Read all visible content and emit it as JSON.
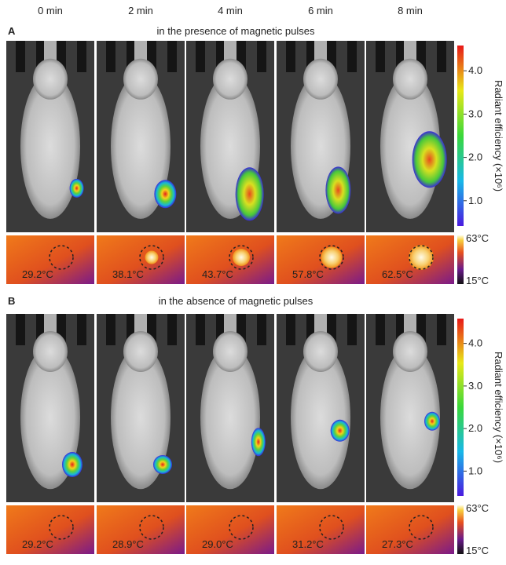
{
  "times": [
    "0 min",
    "2 min",
    "4 min",
    "6 min",
    "8 min"
  ],
  "panels": [
    {
      "label": "A",
      "title": "in the presence of magnetic pulses",
      "temps": [
        "29.2°C",
        "38.1°C",
        "43.7°C",
        "57.8°C",
        "62.5°C"
      ]
    },
    {
      "label": "B",
      "title": "in the absence of magnetic pulses",
      "temps": [
        "29.2°C",
        "28.9°C",
        "29.0°C",
        "31.2°C",
        "27.3°C"
      ]
    }
  ],
  "colorbar": {
    "ticks": [
      "4.0",
      "3.0",
      "2.0",
      "1.0"
    ],
    "label": "Radiant efficiency (×10⁶)"
  },
  "thermal_scale": {
    "max": "63°C",
    "min": "15°C"
  }
}
